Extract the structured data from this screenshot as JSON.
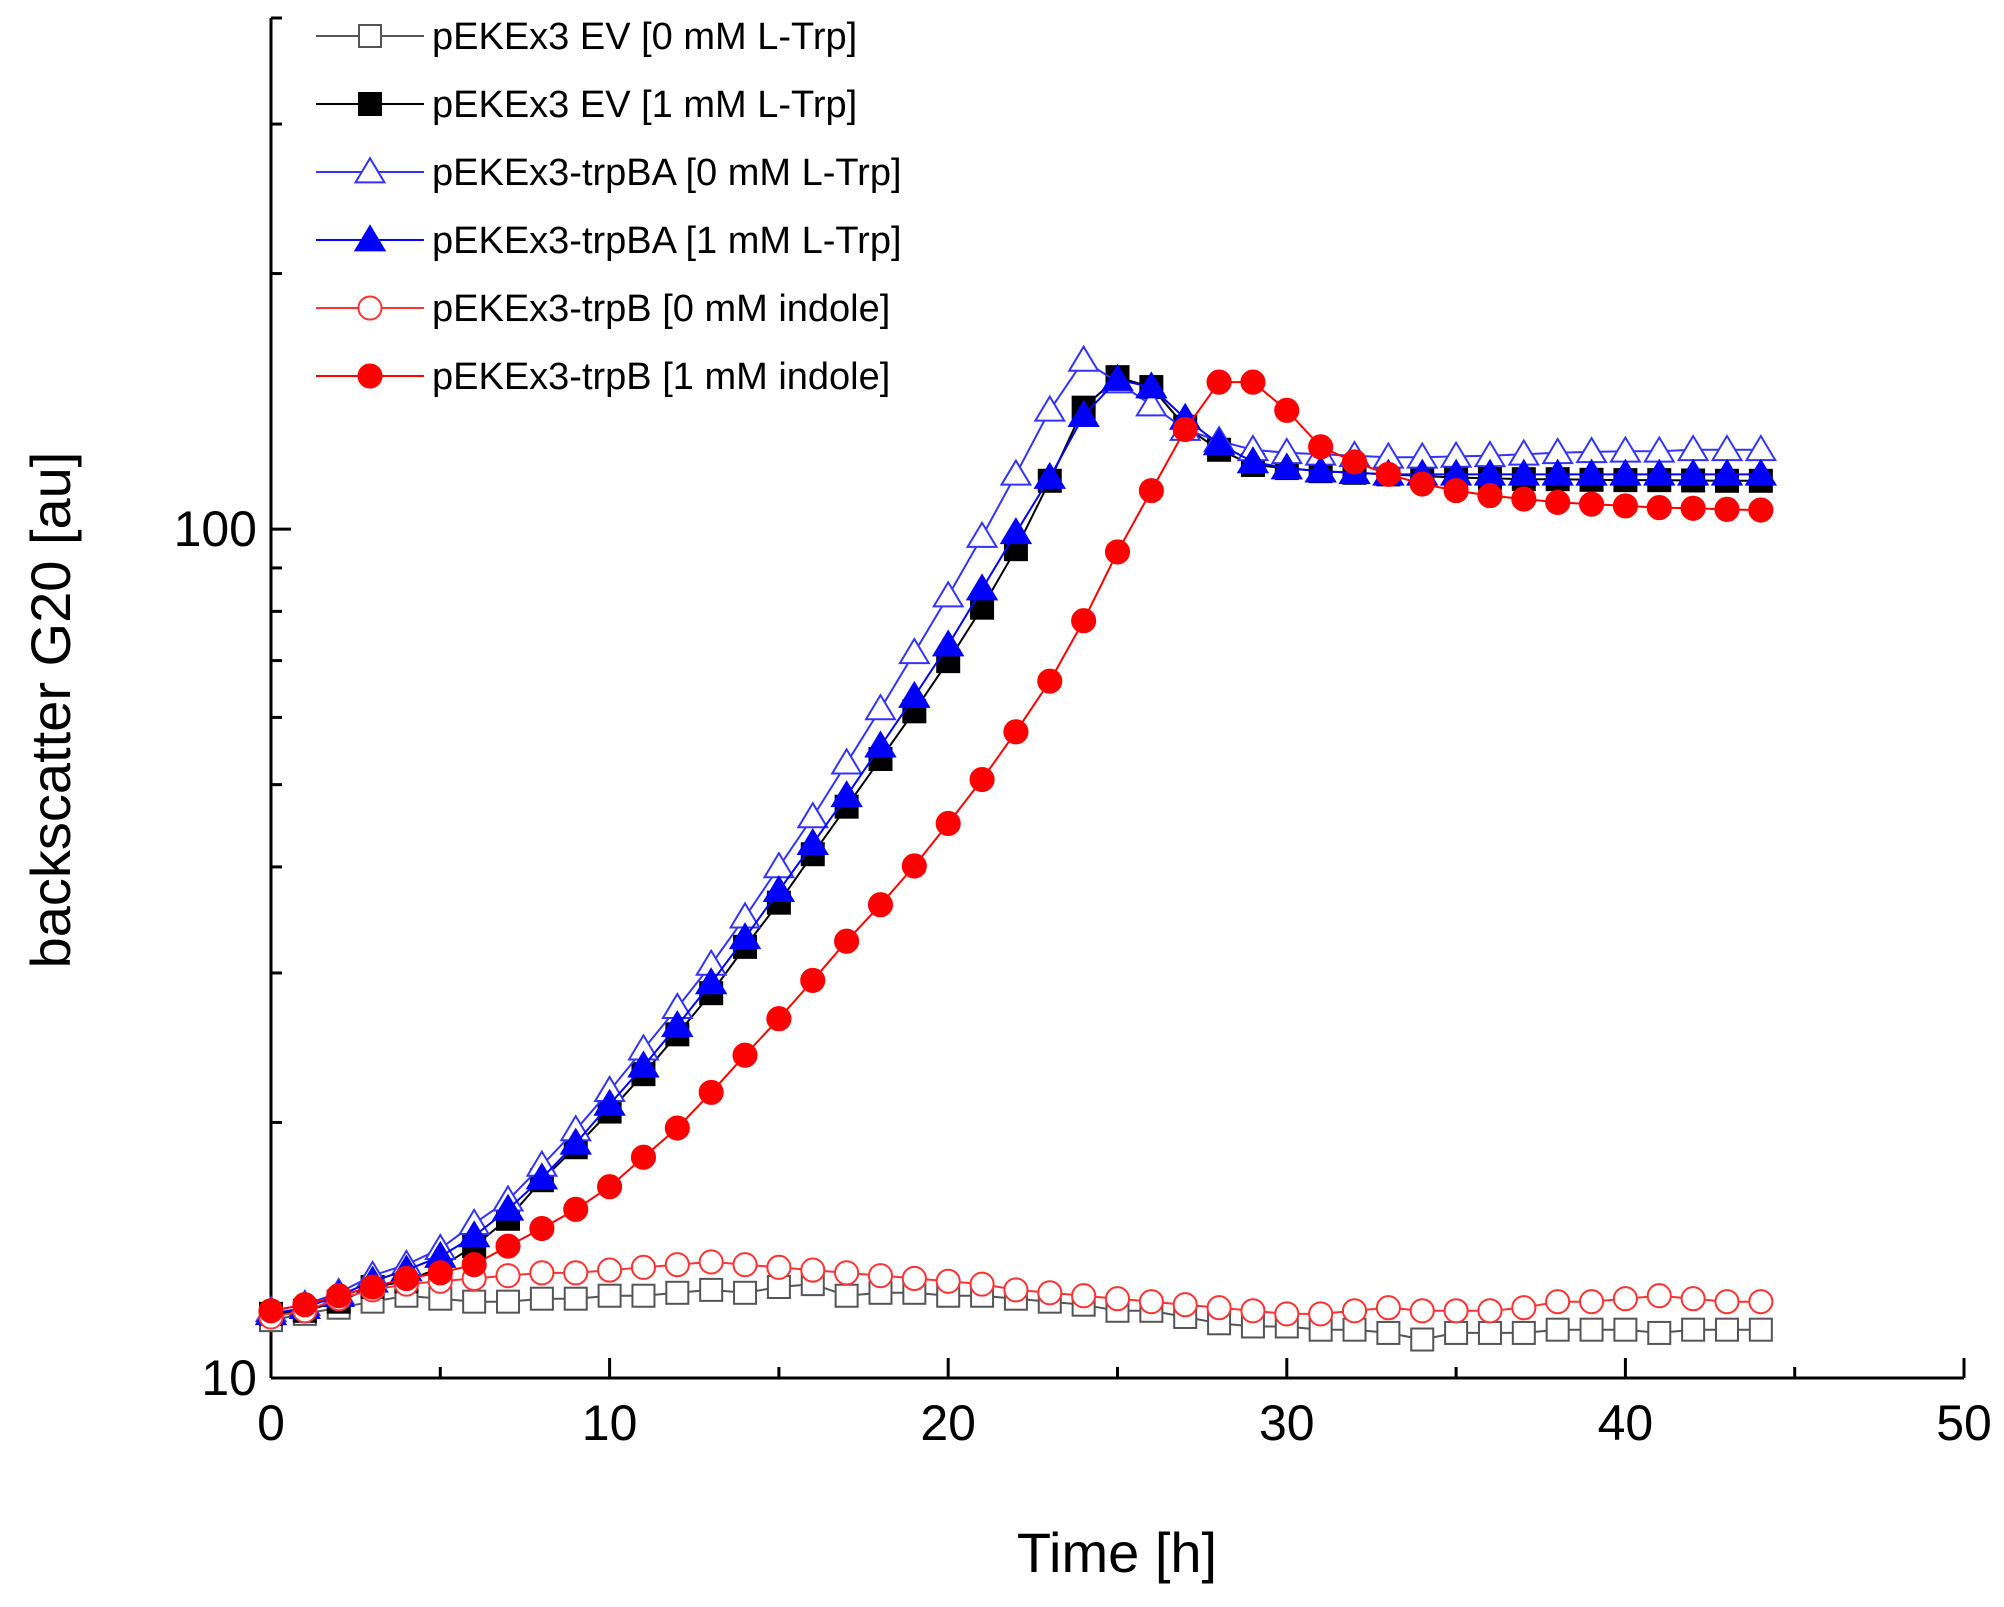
{
  "chart_data": {
    "type": "line",
    "title": "",
    "xlabel": "Time [h]",
    "ylabel": "backscatter G20 [au]",
    "xlim": [
      0,
      50
    ],
    "ylim": [
      10,
      400
    ],
    "yscale": "log",
    "x_ticks": [
      0,
      10,
      20,
      30,
      40,
      50
    ],
    "y_tick_labels": [
      {
        "value": 10,
        "label": "10"
      },
      {
        "value": 100,
        "label": "100"
      }
    ],
    "grid": false,
    "legend_position": "top-left",
    "x": [
      0,
      1,
      2,
      3,
      4,
      5,
      6,
      7,
      8,
      9,
      10,
      11,
      12,
      13,
      14,
      15,
      16,
      17,
      18,
      19,
      20,
      21,
      22,
      23,
      24,
      25,
      26,
      27,
      28,
      29,
      30,
      31,
      32,
      33,
      34,
      35,
      36,
      37,
      38,
      39,
      40,
      41,
      42,
      43,
      44
    ],
    "series": [
      {
        "name": "pEKEx3 EV [0 mM L-Trp]",
        "color": "#555555",
        "marker": "square",
        "filled": false,
        "values": [
          11.7,
          11.9,
          12.1,
          12.3,
          12.5,
          12.4,
          12.3,
          12.3,
          12.4,
          12.4,
          12.5,
          12.5,
          12.6,
          12.7,
          12.6,
          12.8,
          12.9,
          12.5,
          12.6,
          12.6,
          12.5,
          12.5,
          12.4,
          12.3,
          12.2,
          12.0,
          12.0,
          11.8,
          11.6,
          11.5,
          11.5,
          11.4,
          11.4,
          11.3,
          11.1,
          11.3,
          11.3,
          11.3,
          11.4,
          11.4,
          11.4,
          11.3,
          11.4,
          11.4,
          11.4
        ]
      },
      {
        "name": "pEKEx3 EV [1 mM L-Trp]",
        "color": "#000000",
        "marker": "square",
        "filled": true,
        "values": [
          11.9,
          12.0,
          12.3,
          12.8,
          13.0,
          13.5,
          14.3,
          15.4,
          17.1,
          18.7,
          20.6,
          22.8,
          25.4,
          28.4,
          32.2,
          36.3,
          41.4,
          47.1,
          53.6,
          61.0,
          69.9,
          80.8,
          94.7,
          114.0,
          139.0,
          151.0,
          147.0,
          132.0,
          124.0,
          119.0,
          118.0,
          117.0,
          116.5,
          116.0,
          115.5,
          115.0,
          114.8,
          114.5,
          114.5,
          114.3,
          114.2,
          114.2,
          114.1,
          114.0,
          114.0
        ]
      },
      {
        "name": "pEKEx3-trpBA [0 mM L-Trp]",
        "color": "#3333ff",
        "marker": "triangle",
        "filled": false,
        "values": [
          12.0,
          12.2,
          12.6,
          13.2,
          13.6,
          14.2,
          15.2,
          16.2,
          17.8,
          19.6,
          21.8,
          24.4,
          27.3,
          30.7,
          34.9,
          40.0,
          45.8,
          53.0,
          61.4,
          71.5,
          83.4,
          98.0,
          116.0,
          138.0,
          158.0,
          149.0,
          140.0,
          131.0,
          127.0,
          124.0,
          123.0,
          122.5,
          122.0,
          121.5,
          121.5,
          121.8,
          122.0,
          122.5,
          123.0,
          123.3,
          123.5,
          123.5,
          124.0,
          124.0,
          124.0
        ]
      },
      {
        "name": "pEKEx3-trpBA [1 mM L-Trp]",
        "color": "#0000ff",
        "marker": "triangle",
        "filled": true,
        "values": [
          11.9,
          12.1,
          12.5,
          13.0,
          13.4,
          13.9,
          14.7,
          15.8,
          17.2,
          18.9,
          21.0,
          23.3,
          26.0,
          29.2,
          33.0,
          37.5,
          42.6,
          48.5,
          55.5,
          63.5,
          73.0,
          85.0,
          99.0,
          115.0,
          136.0,
          150.0,
          147.0,
          135.0,
          126.0,
          120.0,
          118.0,
          117.0,
          116.5,
          116.0,
          116.0,
          116.0,
          116.0,
          116.0,
          116.0,
          116.0,
          116.0,
          116.0,
          116.0,
          116.0,
          116.0
        ]
      },
      {
        "name": "pEKEx3-trpB [0 mM indole]",
        "color": "#ff3333",
        "marker": "circle",
        "filled": false,
        "values": [
          11.8,
          12.0,
          12.4,
          12.7,
          12.9,
          13.0,
          13.1,
          13.2,
          13.3,
          13.3,
          13.4,
          13.5,
          13.6,
          13.7,
          13.6,
          13.5,
          13.4,
          13.3,
          13.2,
          13.1,
          13.0,
          12.9,
          12.7,
          12.6,
          12.5,
          12.4,
          12.3,
          12.2,
          12.1,
          12.0,
          11.9,
          11.9,
          12.0,
          12.1,
          12.0,
          12.0,
          12.0,
          12.1,
          12.3,
          12.3,
          12.4,
          12.5,
          12.4,
          12.3,
          12.3
        ]
      },
      {
        "name": "pEKEx3-trpB [1 mM indole]",
        "color": "#ff0000",
        "marker": "circle",
        "filled": true,
        "values": [
          12.0,
          12.2,
          12.5,
          12.8,
          13.1,
          13.3,
          13.6,
          14.3,
          15.0,
          15.8,
          16.8,
          18.2,
          19.7,
          21.7,
          24.0,
          26.5,
          29.4,
          32.7,
          36.1,
          40.1,
          45.0,
          50.7,
          57.7,
          66.2,
          78.0,
          94.0,
          111.0,
          131.0,
          149.0,
          149.0,
          138.0,
          125.0,
          120.0,
          116.0,
          113.0,
          111.0,
          109.5,
          108.5,
          107.5,
          107.0,
          106.5,
          106.0,
          105.8,
          105.5,
          105.3
        ]
      }
    ]
  }
}
